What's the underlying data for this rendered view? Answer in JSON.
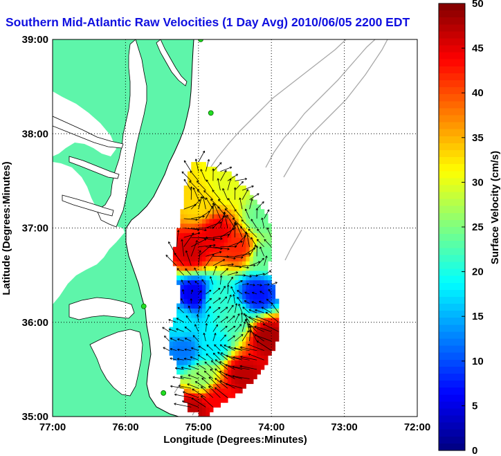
{
  "title": "Southern Mid-Atlantic Raw Velocities (1 Day Avg) 2010/06/05 2200 EDT",
  "colors": {
    "land": "#5ef5aa",
    "coastline": "#000000",
    "bathymetry": "#a8a8a8",
    "title": "#1010e0",
    "vector": "#000000"
  },
  "chart_data": {
    "type": "heatmap",
    "xlabel": "Longitude (Degrees:Minutes)",
    "ylabel": "Latitude (Degrees:Minutes)",
    "xlim": [
      -77,
      -72
    ],
    "ylim": [
      35,
      39
    ],
    "x_ticks": [
      {
        "value": -77,
        "label": "77:00"
      },
      {
        "value": -76,
        "label": "76:00"
      },
      {
        "value": -75,
        "label": "75:00"
      },
      {
        "value": -74,
        "label": "74:00"
      },
      {
        "value": -73,
        "label": "73:00"
      },
      {
        "value": -72,
        "label": "72:00"
      }
    ],
    "y_ticks": [
      {
        "value": 35,
        "label": "35:00"
      },
      {
        "value": 36,
        "label": "36:00"
      },
      {
        "value": 37,
        "label": "37:00"
      },
      {
        "value": 38,
        "label": "38:00"
      },
      {
        "value": 39,
        "label": "39:00"
      }
    ],
    "grid": true,
    "colorbar": {
      "label": "Surface Velocity (cm/s)",
      "min": 0,
      "max": 50,
      "ticks": [
        "0",
        "5",
        "10",
        "15",
        "20",
        "25",
        "30",
        "35",
        "40",
        "45",
        "50"
      ],
      "colormap": "jet"
    },
    "velocity_centers": [
      {
        "lon": -74.75,
        "lat": 36.95,
        "speed": 45
      },
      {
        "lon": -74.45,
        "lat": 36.8,
        "speed": 42
      },
      {
        "lon": -75.1,
        "lat": 36.75,
        "speed": 46
      },
      {
        "lon": -75.0,
        "lat": 37.25,
        "speed": 33
      },
      {
        "lon": -74.6,
        "lat": 37.45,
        "speed": 30
      },
      {
        "lon": -74.15,
        "lat": 37.1,
        "speed": 24
      },
      {
        "lon": -74.1,
        "lat": 36.7,
        "speed": 24
      },
      {
        "lon": -75.05,
        "lat": 36.3,
        "speed": 5
      },
      {
        "lon": -74.2,
        "lat": 36.3,
        "speed": 7
      },
      {
        "lon": -74.75,
        "lat": 36.25,
        "speed": 21
      },
      {
        "lon": -75.2,
        "lat": 35.7,
        "speed": 12
      },
      {
        "lon": -74.8,
        "lat": 35.75,
        "speed": 18
      },
      {
        "lon": -74.05,
        "lat": 35.85,
        "speed": 48
      },
      {
        "lon": -74.4,
        "lat": 35.45,
        "speed": 47
      },
      {
        "lon": -74.75,
        "lat": 35.2,
        "speed": 44
      },
      {
        "lon": -75.05,
        "lat": 35.1,
        "speed": 47
      },
      {
        "lon": -74.95,
        "lat": 35.4,
        "speed": 26
      },
      {
        "lon": -75.25,
        "lat": 36.0,
        "speed": 18
      },
      {
        "lon": -74.5,
        "lat": 36.05,
        "speed": 22
      }
    ],
    "stations": [
      {
        "lon": -74.97,
        "lat": 39.0
      },
      {
        "lon": -74.83,
        "lat": 38.22
      },
      {
        "lon": -75.75,
        "lat": 36.17
      },
      {
        "lon": -75.48,
        "lat": 35.25
      }
    ]
  }
}
